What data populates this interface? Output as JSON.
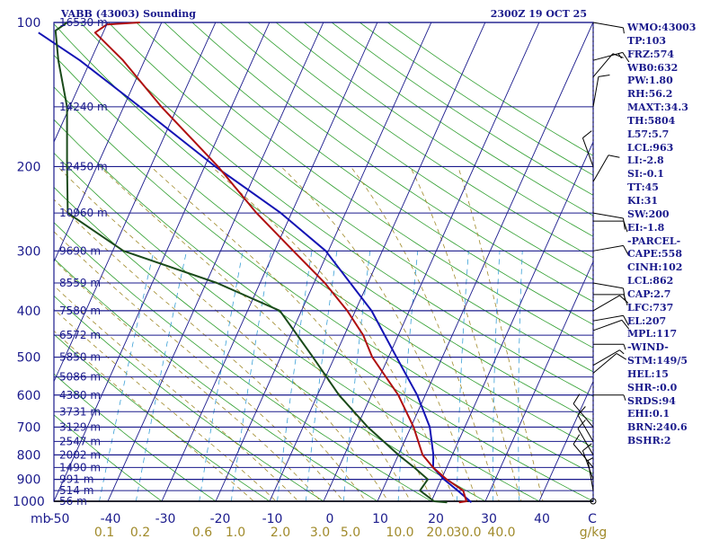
{
  "header": {
    "station": "VABB (43003) Sounding",
    "time": "2300Z 19 OCT 25"
  },
  "indices": [
    "WMO:43003",
    "TP:103",
    "FRZ:574",
    "WB0:632",
    "PW:1.80",
    "RH:56.2",
    "MAXT:34.3",
    "TH:5804",
    "L57:5.7",
    "LCL:963",
    "LI:-2.8",
    "SI:-0.1",
    "TT:45",
    "KI:31",
    "SW:200",
    "EI:-1.8",
    "-PARCEL-",
    "CAPE:558",
    "CINH:102",
    "LCL:862",
    "CAP:2.7",
    "LFC:737",
    "EL:207",
    "MPL:117",
    "-WIND-",
    "STM:149/5",
    "HEL:15",
    "SHR-:0.0",
    "SRDS:94",
    "EHI:0.1",
    "BRN:240.6",
    "BSHR:2"
  ],
  "colors": {
    "isobar": "#1a1a8c",
    "isotherm": "#1a1a8c",
    "dry_adiabat": "#2e9e2e",
    "moist_adiabat": "#a08a2a",
    "mixing_ratio": "#3aa0d6",
    "temperature": "#b01010",
    "dewpoint": "#1a4a1a",
    "parcel": "#1414b4"
  },
  "chart_data": {
    "type": "skew-t",
    "pressure_ticks": [
      "100",
      "200",
      "300",
      "400",
      "500",
      "600",
      "700",
      "800",
      "900",
      "1000"
    ],
    "height_labels": [
      {
        "p": 100,
        "label": "16530 m"
      },
      {
        "p": 150,
        "label": "14240 m"
      },
      {
        "p": 200,
        "label": "12450 m"
      },
      {
        "p": 250,
        "label": "10960 m"
      },
      {
        "p": 300,
        "label": "9690 m"
      },
      {
        "p": 350,
        "label": "8559 m"
      },
      {
        "p": 400,
        "label": "7580 m"
      },
      {
        "p": 450,
        "label": "6572 m"
      },
      {
        "p": 500,
        "label": "5850 m"
      },
      {
        "p": 550,
        "label": "5086 m"
      },
      {
        "p": 600,
        "label": "4380 m"
      },
      {
        "p": 650,
        "label": "3731 m"
      },
      {
        "p": 700,
        "label": "3129 m"
      },
      {
        "p": 750,
        "label": "2547 m"
      },
      {
        "p": 800,
        "label": "2002 m"
      },
      {
        "p": 850,
        "label": "1490 m"
      },
      {
        "p": 900,
        "label": "991 m"
      },
      {
        "p": 950,
        "label": "514 m"
      },
      {
        "p": 1000,
        "label": "56 m"
      }
    ],
    "temperature_ticks": [
      "-50",
      "-40",
      "-30",
      "-20",
      "-10",
      "0",
      "10",
      "20",
      "30",
      "40",
      "C"
    ],
    "mixing_ratio_ticks": [
      "0.1",
      "0.2",
      "0.6",
      "1.0",
      "2.0",
      "3.0",
      "5.0",
      "10.0",
      "20.0",
      "30.0",
      "40.0",
      "g/kg"
    ],
    "mb_label": "mb",
    "temperature": [
      {
        "p": 1005,
        "t": 25.2
      },
      {
        "p": 1000,
        "t": 26.5
      },
      {
        "p": 950,
        "t": 25.0
      },
      {
        "p": 900,
        "t": 21.0
      },
      {
        "p": 850,
        "t": 17.5
      },
      {
        "p": 800,
        "t": 14.5
      },
      {
        "p": 700,
        "t": 10.5
      },
      {
        "p": 600,
        "t": 5.0
      },
      {
        "p": 500,
        "t": -3.0
      },
      {
        "p": 450,
        "t": -6.5
      },
      {
        "p": 400,
        "t": -11.5
      },
      {
        "p": 350,
        "t": -18.0
      },
      {
        "p": 300,
        "t": -26.5
      },
      {
        "p": 250,
        "t": -36.5
      },
      {
        "p": 200,
        "t": -47.5
      },
      {
        "p": 150,
        "t": -63.0
      },
      {
        "p": 120,
        "t": -74.0
      },
      {
        "p": 105,
        "t": -81.5
      },
      {
        "p": 101,
        "t": -80.0
      },
      {
        "p": 100,
        "t": -74.0
      }
    ],
    "dewpoint": [
      {
        "p": 1005,
        "t": 23.0
      },
      {
        "p": 1000,
        "t": 20.5
      },
      {
        "p": 950,
        "t": 17.0
      },
      {
        "p": 900,
        "t": 17.5
      },
      {
        "p": 850,
        "t": 14.0
      },
      {
        "p": 800,
        "t": 10.0
      },
      {
        "p": 700,
        "t": 2.0
      },
      {
        "p": 600,
        "t": -6.0
      },
      {
        "p": 500,
        "t": -14.0
      },
      {
        "p": 400,
        "t": -24.0
      },
      {
        "p": 350,
        "t": -38.0
      },
      {
        "p": 300,
        "t": -58.0
      },
      {
        "p": 250,
        "t": -71.5
      },
      {
        "p": 200,
        "t": -75.5
      },
      {
        "p": 150,
        "t": -80.5
      },
      {
        "p": 120,
        "t": -86.0
      },
      {
        "p": 104,
        "t": -89.0
      },
      {
        "p": 100,
        "t": -87.5
      }
    ],
    "parcel": [
      {
        "p": 1005,
        "t": 27.5
      },
      {
        "p": 950,
        "t": 24.0
      },
      {
        "p": 900,
        "t": 20.5
      },
      {
        "p": 850,
        "t": 17.5
      },
      {
        "p": 800,
        "t": 16.5
      },
      {
        "p": 700,
        "t": 13.5
      },
      {
        "p": 600,
        "t": 8.5
      },
      {
        "p": 500,
        "t": 1.5
      },
      {
        "p": 400,
        "t": -7.0
      },
      {
        "p": 300,
        "t": -20.5
      },
      {
        "p": 250,
        "t": -32.0
      },
      {
        "p": 200,
        "t": -48.0
      },
      {
        "p": 150,
        "t": -67.0
      },
      {
        "p": 120,
        "t": -82.0
      },
      {
        "p": 105,
        "t": -92.0
      }
    ],
    "wind_barbs": [
      {
        "p": 100,
        "dir": 100,
        "speed": 5
      },
      {
        "p": 120,
        "dir": 75,
        "speed": 15
      },
      {
        "p": 130,
        "dir": 40,
        "speed": 10
      },
      {
        "p": 150,
        "dir": 10,
        "speed": 10
      },
      {
        "p": 200,
        "dir": 340,
        "speed": 10
      },
      {
        "p": 215,
        "dir": 30,
        "speed": 10
      },
      {
        "p": 250,
        "dir": 100,
        "speed": 10
      },
      {
        "p": 260,
        "dir": 90,
        "speed": 10
      },
      {
        "p": 300,
        "dir": 80,
        "speed": 10
      },
      {
        "p": 350,
        "dir": 100,
        "speed": 10
      },
      {
        "p": 370,
        "dir": 90,
        "speed": 10
      },
      {
        "p": 400,
        "dir": 60,
        "speed": 10
      },
      {
        "p": 420,
        "dir": 80,
        "speed": 10
      },
      {
        "p": 440,
        "dir": 70,
        "speed": 10
      },
      {
        "p": 470,
        "dir": 90,
        "speed": 5
      },
      {
        "p": 520,
        "dir": 60,
        "speed": 5
      },
      {
        "p": 540,
        "dir": 50,
        "speed": 10
      },
      {
        "p": 600,
        "dir": 90,
        "speed": 5
      },
      {
        "p": 700,
        "dir": 320,
        "speed": 10
      },
      {
        "p": 750,
        "dir": 330,
        "speed": 10
      },
      {
        "p": 800,
        "dir": 330,
        "speed": 10
      },
      {
        "p": 850,
        "dir": 320,
        "speed": 10
      },
      {
        "p": 900,
        "dir": 340,
        "speed": 10
      },
      {
        "p": 950,
        "dir": 350,
        "speed": 5
      },
      {
        "p": 1000,
        "dir": 0,
        "speed": 0
      }
    ]
  }
}
